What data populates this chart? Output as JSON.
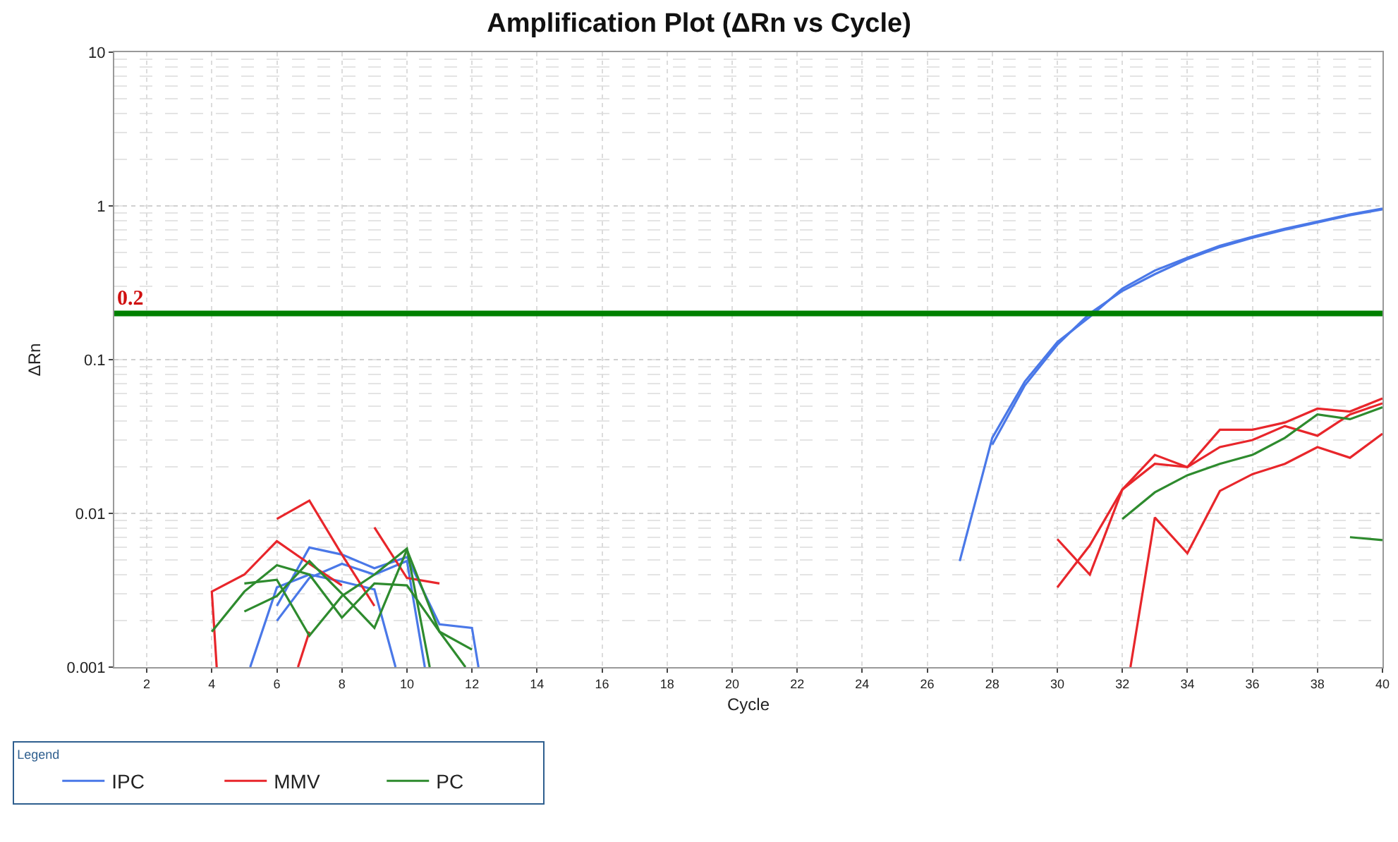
{
  "chart_data": {
    "type": "line",
    "title": "Amplification Plot (ΔRn vs Cycle)",
    "xlabel": "Cycle",
    "ylabel": "ΔRn",
    "legend_title": "Legend",
    "log": "y",
    "grid": true,
    "legend": "bottom",
    "marker": "none",
    "line_style": "solid",
    "xlim": [
      1,
      40
    ],
    "xticks": [
      2,
      4,
      6,
      8,
      10,
      12,
      14,
      16,
      18,
      20,
      22,
      24,
      26,
      28,
      30,
      32,
      34,
      36,
      38,
      40
    ],
    "ylim": [
      0.001,
      10
    ],
    "yticks": [
      0.001,
      0.01,
      0.1,
      1,
      10
    ],
    "ref_lines": [
      {
        "axis": "y",
        "value": 0.2,
        "label": "0.2",
        "color": "#008000"
      }
    ],
    "series": [
      {
        "name": "IPC",
        "color": "#4a78e8",
        "x": [
          27,
          28,
          29,
          30,
          31,
          32,
          33,
          34,
          35,
          36,
          37,
          38,
          39,
          40
        ],
        "values": [
          0.0049,
          0.031,
          0.072,
          0.13,
          0.19,
          0.29,
          0.38,
          0.46,
          0.55,
          0.63,
          0.71,
          0.79,
          0.88,
          0.96
        ]
      },
      {
        "color": "#4a78e8",
        "x": [
          28,
          29,
          30,
          31,
          32,
          33,
          34,
          35,
          36,
          37,
          38,
          39,
          40
        ],
        "values": [
          0.028,
          0.068,
          0.125,
          0.2,
          0.28,
          0.36,
          0.45,
          0.54,
          0.62,
          0.7,
          0.78,
          0.87,
          0.95
        ]
      },
      {
        "color": "#4a78e8",
        "x": [
          6,
          7,
          8,
          9,
          10,
          11,
          12,
          12.2
        ],
        "values": [
          0.0025,
          0.006,
          0.0054,
          0.0044,
          0.0052,
          0.0019,
          0.0018,
          0.001
        ]
      },
      {
        "color": "#4a78e8",
        "x": [
          6,
          7,
          8,
          9,
          10,
          10.55
        ],
        "values": [
          0.002,
          0.0038,
          0.0047,
          0.004,
          0.0049,
          0.001
        ]
      },
      {
        "color": "#4a78e8",
        "x": [
          5.18,
          6,
          7,
          8,
          9,
          9.65
        ],
        "values": [
          0.001,
          0.0033,
          0.004,
          0.0036,
          0.0032,
          0.001
        ]
      },
      {
        "name": "MMV",
        "color": "#e8262b",
        "x": [
          30,
          31,
          32,
          33,
          34,
          35,
          36,
          37,
          38,
          39,
          40
        ],
        "values": [
          0.0068,
          0.004,
          0.0143,
          0.024,
          0.02,
          0.035,
          0.035,
          0.039,
          0.048,
          0.046,
          0.056
        ]
      },
      {
        "color": "#e8262b",
        "x": [
          30,
          31,
          32,
          33,
          34,
          35,
          36,
          37,
          38,
          39,
          40
        ],
        "values": [
          0.0033,
          0.0062,
          0.0143,
          0.021,
          0.02,
          0.027,
          0.03,
          0.037,
          0.032,
          0.044,
          0.052
        ]
      },
      {
        "color": "#e8262b",
        "x": [
          32.25,
          33,
          34,
          35,
          36,
          37,
          38,
          39,
          40
        ],
        "values": [
          0.001,
          0.0094,
          0.0055,
          0.014,
          0.018,
          0.021,
          0.027,
          0.023,
          0.033
        ]
      },
      {
        "color": "#e8262b",
        "x": [
          4.15,
          4,
          5,
          6,
          7,
          8
        ],
        "values": [
          0.001,
          0.0031,
          0.004,
          0.0066,
          0.0047,
          0.0034
        ]
      },
      {
        "color": "#e8262b",
        "x": [
          6,
          7,
          8,
          9
        ],
        "values": [
          0.0092,
          0.0121,
          0.0054,
          0.0025
        ]
      },
      {
        "color": "#e8262b",
        "x": [
          9,
          10,
          11
        ],
        "values": [
          0.0081,
          0.0038,
          0.0035
        ]
      },
      {
        "color": "#e8262b",
        "x": [
          6.65,
          7
        ],
        "values": [
          0.001,
          0.0017
        ]
      },
      {
        "name": "PC",
        "color": "#2e8b2e",
        "x": [
          32,
          33,
          34,
          35,
          36,
          37,
          38,
          39,
          40
        ],
        "values": [
          0.0092,
          0.0137,
          0.0177,
          0.021,
          0.024,
          0.031,
          0.044,
          0.041,
          0.049
        ]
      },
      {
        "color": "#2e8b2e",
        "x": [
          39,
          40
        ],
        "values": [
          0.007,
          0.0067
        ]
      },
      {
        "color": "#2e8b2e",
        "x": [
          4,
          5,
          6,
          7,
          8,
          9,
          10,
          11,
          12
        ],
        "values": [
          0.0017,
          0.0031,
          0.0046,
          0.004,
          0.0021,
          0.0035,
          0.0034,
          0.0017,
          0.0013
        ]
      },
      {
        "color": "#2e8b2e",
        "x": [
          5,
          6,
          7,
          8,
          9,
          10,
          10.7
        ],
        "values": [
          0.0035,
          0.0037,
          0.0016,
          0.0029,
          0.004,
          0.0059,
          0.001
        ]
      },
      {
        "color": "#2e8b2e",
        "x": [
          5,
          6,
          7,
          8,
          9,
          10,
          11,
          11.8
        ],
        "values": [
          0.0023,
          0.0029,
          0.0049,
          0.003,
          0.0018,
          0.0058,
          0.0017,
          0.001
        ]
      }
    ]
  }
}
